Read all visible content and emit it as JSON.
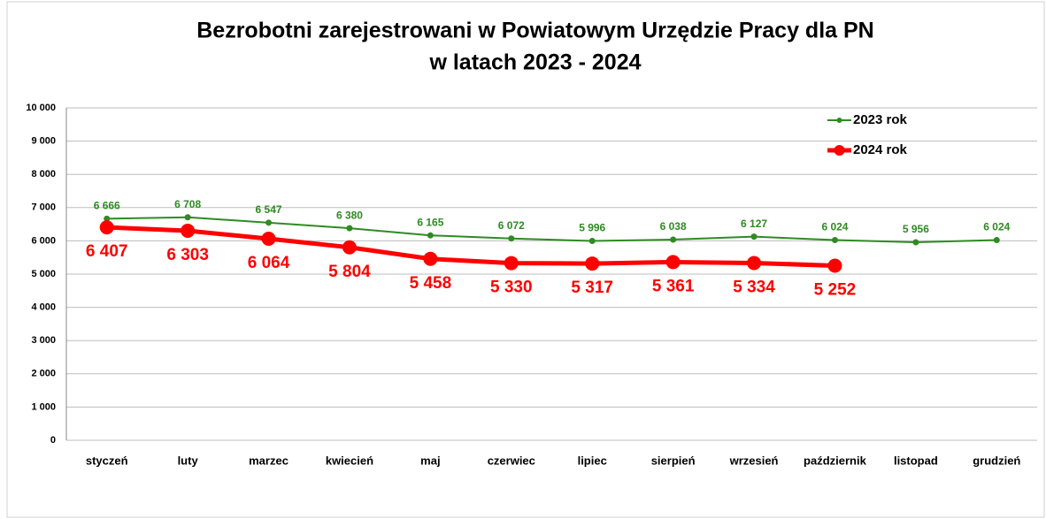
{
  "chart_data": {
    "type": "line",
    "title": [
      "Bezrobotni zarejestrowani w Powiatowym Urzędzie Pracy dla PN",
      "w latach 2023 - 2024"
    ],
    "categories": [
      "styczeń",
      "luty",
      "marzec",
      "kwiecień",
      "maj",
      "czerwiec",
      "lipiec",
      "sierpień",
      "wrzesień",
      "październik",
      "listopad",
      "grudzień"
    ],
    "series": [
      {
        "name": "2023 rok",
        "color": "#2e8b22",
        "values": [
          6666,
          6708,
          6547,
          6380,
          6165,
          6072,
          5996,
          6038,
          6127,
          6024,
          5956,
          6024
        ],
        "value_labels": [
          "6 666",
          "6 708",
          "6 547",
          "6 380",
          "6 165",
          "6 072",
          "5 996",
          "6 038",
          "6 127",
          "6 024",
          "5 956",
          "6 024"
        ]
      },
      {
        "name": "2024 rok",
        "color": "#ff0000",
        "values": [
          6407,
          6303,
          6064,
          5804,
          5458,
          5330,
          5317,
          5361,
          5334,
          5252,
          null,
          null
        ],
        "value_labels": [
          "6 407",
          "6 303",
          "6 064",
          "5 804",
          "5 458",
          "5 330",
          "5 317",
          "5 361",
          "5 334",
          "5 252",
          null,
          null
        ]
      }
    ],
    "ylim": [
      0,
      10000
    ],
    "yticks": [
      0,
      {
        "value": 1000,
        "label": "1 000"
      },
      {
        "value": 2000,
        "label": "2 000"
      },
      {
        "value": 3000,
        "label": "3 000"
      },
      {
        "value": 4000,
        "label": "4 000"
      },
      {
        "value": 5000,
        "label": "5 000"
      },
      {
        "value": 6000,
        "label": "6 000"
      },
      {
        "value": 7000,
        "label": "7 000"
      },
      {
        "value": 8000,
        "label": "8 000"
      },
      {
        "value": 9000,
        "label": "9 000"
      },
      {
        "value": 10000,
        "label": "10 000"
      }
    ],
    "grid": true,
    "legend": "top-right"
  }
}
